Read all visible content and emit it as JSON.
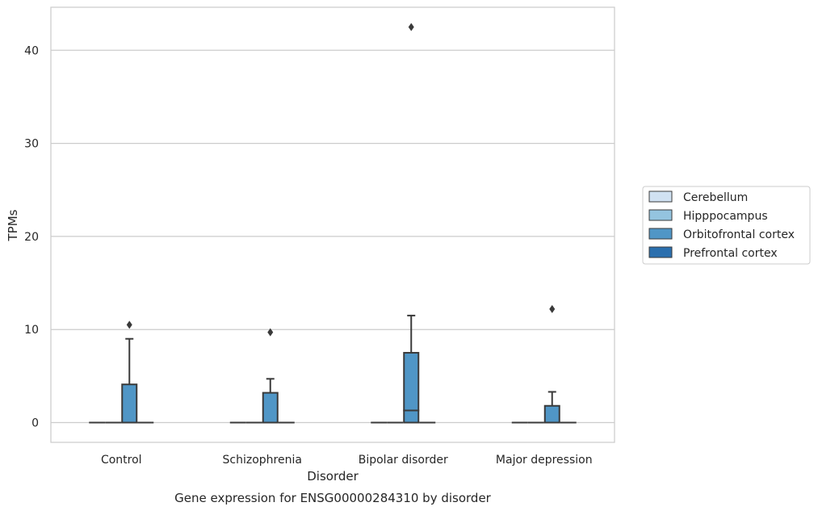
{
  "chart_data": {
    "type": "box",
    "title": "",
    "xlabel": "Disorder",
    "ylabel": "TPMs",
    "caption": "Gene expression for ENSG00000284310 by disorder",
    "ylim": [
      -2,
      44.5
    ],
    "yticks": [
      0,
      10,
      20,
      30,
      40
    ],
    "grid": "horizontal",
    "legend_position": "center right, outside plot",
    "categories": [
      "Control",
      "Schizophrenia",
      "Bipolar disorder",
      "Major depression"
    ],
    "series": [
      {
        "name": "Cerebellum",
        "color": "#d0e1f2",
        "boxes": [
          {
            "min": 0,
            "q1": 0,
            "median": 0,
            "q3": 0,
            "max": 0,
            "outliers": []
          },
          {
            "min": 0,
            "q1": 0,
            "median": 0,
            "q3": 0,
            "max": 0,
            "outliers": []
          },
          {
            "min": 0,
            "q1": 0,
            "median": 0,
            "q3": 0,
            "max": 0,
            "outliers": []
          },
          {
            "min": 0,
            "q1": 0,
            "median": 0,
            "q3": 0,
            "max": 0,
            "outliers": []
          }
        ]
      },
      {
        "name": "Hipppocampus",
        "color": "#94c4df",
        "boxes": [
          {
            "min": 0,
            "q1": 0,
            "median": 0,
            "q3": 0,
            "max": 0,
            "outliers": []
          },
          {
            "min": 0,
            "q1": 0,
            "median": 0,
            "q3": 0,
            "max": 0,
            "outliers": []
          },
          {
            "min": 0,
            "q1": 0,
            "median": 0,
            "q3": 0,
            "max": 0,
            "outliers": []
          },
          {
            "min": 0,
            "q1": 0,
            "median": 0,
            "q3": 0,
            "max": 0,
            "outliers": []
          }
        ]
      },
      {
        "name": "Orbitofrontal cortex",
        "color": "#5096c6",
        "boxes": [
          {
            "min": 0,
            "q1": 0,
            "median": 0,
            "q3": 4.1,
            "max": 9.0,
            "outliers": [
              10.5
            ]
          },
          {
            "min": 0,
            "q1": 0,
            "median": 0,
            "q3": 3.2,
            "max": 4.7,
            "outliers": [
              9.7
            ]
          },
          {
            "min": 0,
            "q1": 0,
            "median": 1.3,
            "q3": 7.5,
            "max": 11.5,
            "outliers": [
              42.5
            ]
          },
          {
            "min": 0,
            "q1": 0,
            "median": 0,
            "q3": 1.8,
            "max": 3.3,
            "outliers": [
              12.2
            ]
          }
        ]
      },
      {
        "name": "Prefrontal cortex",
        "color": "#2b6fae",
        "boxes": [
          {
            "min": 0,
            "q1": 0,
            "median": 0,
            "q3": 0,
            "max": 0,
            "outliers": []
          },
          {
            "min": 0,
            "q1": 0,
            "median": 0,
            "q3": 0,
            "max": 0,
            "outliers": []
          },
          {
            "min": 0,
            "q1": 0,
            "median": 0,
            "q3": 0,
            "max": 0,
            "outliers": []
          },
          {
            "min": 0,
            "q1": 0,
            "median": 0,
            "q3": 0,
            "max": 0,
            "outliers": []
          }
        ]
      }
    ]
  }
}
